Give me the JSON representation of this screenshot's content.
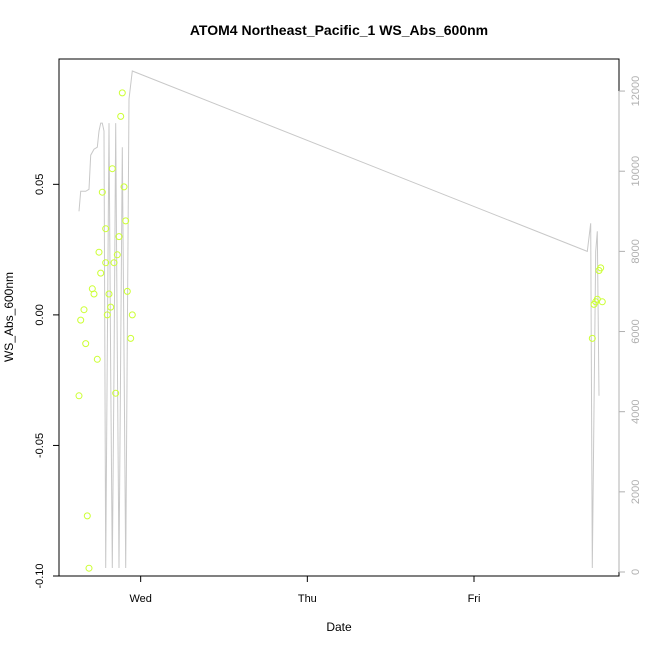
{
  "chart_data": {
    "type": "scatter",
    "title": "ATOM4 Northeast_Pacific_1 WS_Abs_600nm",
    "xlabel": "Date",
    "ylabel": "WS_Abs_600nm",
    "x_ticks": [
      {
        "day": 1.0,
        "label": "Wed"
      },
      {
        "day": 2.0,
        "label": "Thu"
      },
      {
        "day": 3.0,
        "label": "Fri"
      }
    ],
    "xlim": [
      0.51,
      3.87
    ],
    "ylim": [
      -0.1,
      0.098
    ],
    "y_ticks": [
      -0.1,
      -0.05,
      0.0,
      0.05
    ],
    "y_tick_labels": [
      "-0.10",
      "-0.05",
      "0.00",
      "0.05"
    ],
    "y2lim": [
      -100,
      12800
    ],
    "y2_ticks": [
      0,
      2000,
      4000,
      6000,
      8000,
      10000,
      12000
    ],
    "y2_tick_labels": [
      "0",
      "2000",
      "4000",
      "6000",
      "8000",
      "10000",
      "12000"
    ],
    "grid": false,
    "colors": {
      "points": "#ccff33",
      "line": "#c8c8c8",
      "right_axis": "#b0b0b0"
    },
    "series": [
      {
        "type": "scatter",
        "axis": "left",
        "points": [
          [
            0.63,
            -0.031
          ],
          [
            0.64,
            -0.002
          ],
          [
            0.66,
            0.002
          ],
          [
            0.67,
            -0.011
          ],
          [
            0.68,
            -0.077
          ],
          [
            0.69,
            -0.097
          ],
          [
            0.71,
            0.01
          ],
          [
            0.72,
            0.008
          ],
          [
            0.74,
            -0.017
          ],
          [
            0.75,
            0.024
          ],
          [
            0.76,
            0.016
          ],
          [
            0.77,
            0.047
          ],
          [
            0.79,
            0.02
          ],
          [
            0.79,
            0.033
          ],
          [
            0.8,
            0.0
          ],
          [
            0.81,
            0.008
          ],
          [
            0.82,
            0.003
          ],
          [
            0.83,
            0.056
          ],
          [
            0.84,
            0.02
          ],
          [
            0.85,
            -0.03
          ],
          [
            0.86,
            0.023
          ],
          [
            0.87,
            0.03
          ],
          [
            0.88,
            0.076
          ],
          [
            0.89,
            0.085
          ],
          [
            0.9,
            0.049
          ],
          [
            0.91,
            0.036
          ],
          [
            0.92,
            0.009
          ],
          [
            0.94,
            -0.009
          ],
          [
            0.95,
            0.0
          ],
          [
            3.71,
            -0.009
          ],
          [
            3.72,
            0.004
          ],
          [
            3.73,
            0.005
          ],
          [
            3.74,
            0.006
          ],
          [
            3.75,
            0.017
          ],
          [
            3.76,
            0.018
          ],
          [
            3.77,
            0.005
          ]
        ]
      },
      {
        "type": "line",
        "axis": "right",
        "points": [
          [
            0.63,
            9000
          ],
          [
            0.64,
            9500
          ],
          [
            0.67,
            9500
          ],
          [
            0.69,
            9550
          ],
          [
            0.7,
            10400
          ],
          [
            0.72,
            10550
          ],
          [
            0.74,
            10600
          ],
          [
            0.75,
            11000
          ],
          [
            0.76,
            11200
          ],
          [
            0.77,
            11200
          ],
          [
            0.78,
            11000
          ],
          [
            0.79,
            100
          ],
          [
            0.81,
            11200
          ],
          [
            0.82,
            5000
          ],
          [
            0.83,
            100
          ],
          [
            0.84,
            5000
          ],
          [
            0.85,
            11200
          ],
          [
            0.86,
            5500
          ],
          [
            0.87,
            100
          ],
          [
            0.88,
            5500
          ],
          [
            0.89,
            10600
          ],
          [
            0.9,
            5500
          ],
          [
            0.91,
            100
          ],
          [
            0.93,
            11800
          ],
          [
            0.95,
            12500
          ],
          [
            3.68,
            8000
          ],
          [
            3.7,
            8700
          ],
          [
            3.71,
            100
          ],
          [
            3.73,
            8000
          ],
          [
            3.74,
            8500
          ],
          [
            3.75,
            4400
          ]
        ]
      }
    ]
  }
}
